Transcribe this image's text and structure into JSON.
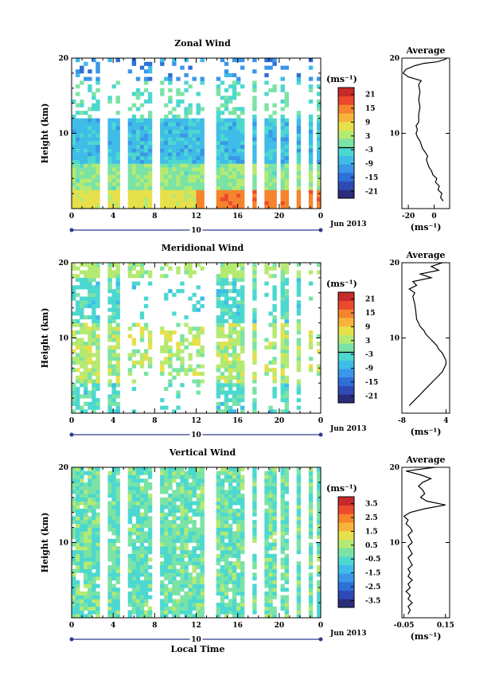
{
  "chart_data": [
    {
      "type": "heatmap",
      "title": "Zonal Wind",
      "ylabel": "Height (km)",
      "x_ticks": [
        "0",
        "4",
        "8",
        "12",
        "16",
        "20",
        "0"
      ],
      "xlim": [
        0,
        24
      ],
      "y_ticks": [
        "10",
        "20"
      ],
      "ylim": [
        0,
        20
      ],
      "date_label": "Jun 2013",
      "day_label": "10",
      "colorbar": {
        "unit_label": "(ms⁻¹)",
        "ticks": [
          "21",
          "15",
          "9",
          "3",
          "-3",
          "-9",
          "-15",
          "-21"
        ],
        "range": [
          -24,
          24
        ],
        "colors": [
          "#2a2d7a",
          "#2f4ab5",
          "#2f6fd8",
          "#3a96e8",
          "#3fbce8",
          "#4cd8d0",
          "#7ae3a5",
          "#b5ea72",
          "#e6e04a",
          "#f7b43a",
          "#f6842d",
          "#ec4a2c",
          "#c72a2a"
        ]
      },
      "profile": {
        "title": "Average",
        "xlabel": "(ms⁻¹)",
        "x_ticks": [
          "-20",
          "0"
        ],
        "xlim": [
          -25,
          12
        ],
        "y_ticks": [
          "10",
          "20"
        ],
        "points": [
          [
            7,
            1.0
          ],
          [
            5,
            1.5
          ],
          [
            6,
            2.0
          ],
          [
            3,
            2.5
          ],
          [
            4,
            3.0
          ],
          [
            1,
            3.5
          ],
          [
            2,
            4.0
          ],
          [
            -1,
            4.5
          ],
          [
            -2,
            5.0
          ],
          [
            -4,
            5.5
          ],
          [
            -5,
            6.0
          ],
          [
            -6,
            6.5
          ],
          [
            -5,
            7.0
          ],
          [
            -7,
            7.5
          ],
          [
            -9,
            8.0
          ],
          [
            -10,
            8.5
          ],
          [
            -11,
            9.0
          ],
          [
            -13,
            9.5
          ],
          [
            -14,
            10.0
          ],
          [
            -13,
            10.5
          ],
          [
            -14,
            11.0
          ],
          [
            -12,
            11.5
          ],
          [
            -12,
            12.5
          ],
          [
            -11,
            13.5
          ],
          [
            -12,
            14.5
          ],
          [
            -11,
            15.5
          ],
          [
            -12,
            16.5
          ],
          [
            -10,
            17.0
          ],
          [
            -20,
            17.5
          ],
          [
            -24,
            18.0
          ],
          [
            -22,
            18.5
          ],
          [
            -15,
            19.0
          ],
          [
            -8,
            19.3
          ],
          [
            2,
            19.5
          ],
          [
            8,
            19.8
          ],
          [
            10,
            20.0
          ]
        ]
      }
    },
    {
      "type": "heatmap",
      "title": "Meridional Wind",
      "ylabel": "Height (km)",
      "x_ticks": [
        "0",
        "4",
        "8",
        "12",
        "16",
        "20",
        "0"
      ],
      "xlim": [
        0,
        24
      ],
      "y_ticks": [
        "10",
        "20"
      ],
      "ylim": [
        0,
        20
      ],
      "date_label": "Jun 2013",
      "day_label": "10",
      "colorbar": {
        "unit_label": "(ms⁻¹)",
        "ticks": [
          "21",
          "15",
          "9",
          "3",
          "-3",
          "-9",
          "-15",
          "-21"
        ],
        "range": [
          -24,
          24
        ],
        "colors": [
          "#2a2d7a",
          "#2f4ab5",
          "#2f6fd8",
          "#3a96e8",
          "#3fbce8",
          "#4cd8d0",
          "#7ae3a5",
          "#b5ea72",
          "#e6e04a",
          "#f7b43a",
          "#f6842d",
          "#ec4a2c",
          "#c72a2a"
        ]
      },
      "profile": {
        "title": "Average",
        "xlabel": "(ms⁻¹)",
        "x_ticks": [
          "-8",
          "4"
        ],
        "xlim": [
          -8,
          5
        ],
        "y_ticks": [
          "10",
          "20"
        ],
        "points": [
          [
            -6,
            1.0
          ],
          [
            -5,
            1.5
          ],
          [
            -4,
            2.0
          ],
          [
            -3,
            2.5
          ],
          [
            -2,
            3.0
          ],
          [
            -1,
            3.5
          ],
          [
            0,
            4.0
          ],
          [
            1,
            4.5
          ],
          [
            2,
            5.0
          ],
          [
            3,
            5.5
          ],
          [
            3.5,
            6.0
          ],
          [
            4,
            6.5
          ],
          [
            4,
            7.0
          ],
          [
            3.5,
            7.5
          ],
          [
            3,
            8.0
          ],
          [
            2,
            8.5
          ],
          [
            1.5,
            9.0
          ],
          [
            0.5,
            9.5
          ],
          [
            -0.5,
            10.0
          ],
          [
            -1.5,
            10.5
          ],
          [
            -2,
            11.0
          ],
          [
            -3,
            11.5
          ],
          [
            -3.5,
            12.0
          ],
          [
            -4,
            12.5
          ],
          [
            -4.2,
            13.5
          ],
          [
            -4.5,
            14.5
          ],
          [
            -5,
            15.5
          ],
          [
            -4.5,
            16.0
          ],
          [
            -6,
            16.5
          ],
          [
            -4,
            17.0
          ],
          [
            -5,
            17.5
          ],
          [
            0,
            18.0
          ],
          [
            -3,
            18.5
          ],
          [
            2,
            19.0
          ],
          [
            0,
            19.5
          ],
          [
            3,
            20.0
          ]
        ]
      }
    },
    {
      "type": "heatmap",
      "title": "Vertical Wind",
      "ylabel": "Height (km)",
      "xlabel": "Local Time",
      "x_ticks": [
        "0",
        "4",
        "8",
        "12",
        "16",
        "20",
        "0"
      ],
      "xlim": [
        0,
        24
      ],
      "y_ticks": [
        "10",
        "20"
      ],
      "ylim": [
        0,
        20
      ],
      "date_label": "Jun 2013",
      "day_label": "10",
      "colorbar": {
        "unit_label": "(ms⁻¹)",
        "ticks": [
          "3.5",
          "2.5",
          "1.5",
          "0.5",
          "-0.5",
          "-1.5",
          "-2.5",
          "-3.5"
        ],
        "range": [
          -4,
          4
        ],
        "colors": [
          "#2a2d7a",
          "#2f4ab5",
          "#2f6fd8",
          "#3a96e8",
          "#3fbce8",
          "#4cd8d0",
          "#7ae3a5",
          "#b5ea72",
          "#e6e04a",
          "#f7b43a",
          "#f6842d",
          "#ec4a2c",
          "#c72a2a"
        ]
      },
      "profile": {
        "title": "Average",
        "xlabel": "(ms⁻¹)",
        "x_ticks": [
          "-0.05",
          "0.15"
        ],
        "xlim": [
          -0.06,
          0.17
        ],
        "y_ticks": [
          "10",
          "20"
        ],
        "points": [
          [
            -0.03,
            0.5
          ],
          [
            -0.02,
            1.0
          ],
          [
            -0.03,
            1.5
          ],
          [
            -0.01,
            2.0
          ],
          [
            -0.03,
            2.5
          ],
          [
            -0.02,
            3.0
          ],
          [
            -0.04,
            3.5
          ],
          [
            -0.02,
            4.0
          ],
          [
            -0.03,
            4.5
          ],
          [
            -0.01,
            5.0
          ],
          [
            -0.03,
            5.5
          ],
          [
            -0.02,
            6.0
          ],
          [
            -0.03,
            6.5
          ],
          [
            -0.01,
            7.0
          ],
          [
            -0.02,
            7.5
          ],
          [
            -0.03,
            8.0
          ],
          [
            -0.01,
            8.5
          ],
          [
            -0.02,
            9.0
          ],
          [
            -0.03,
            9.5
          ],
          [
            -0.01,
            10.0
          ],
          [
            -0.02,
            10.5
          ],
          [
            -0.03,
            11.0
          ],
          [
            -0.01,
            11.5
          ],
          [
            -0.02,
            12.0
          ],
          [
            -0.04,
            12.5
          ],
          [
            -0.03,
            13.0
          ],
          [
            -0.05,
            13.5
          ],
          [
            -0.02,
            14.0
          ],
          [
            0.05,
            14.5
          ],
          [
            0.15,
            15.0
          ],
          [
            0.06,
            15.5
          ],
          [
            0.03,
            16.0
          ],
          [
            0.05,
            16.5
          ],
          [
            0.04,
            17.0
          ],
          [
            0.02,
            17.5
          ],
          [
            0.04,
            18.0
          ],
          [
            0.08,
            18.5
          ],
          [
            0.03,
            19.0
          ],
          [
            -0.04,
            19.5
          ],
          [
            0.1,
            20.0
          ]
        ]
      }
    }
  ]
}
